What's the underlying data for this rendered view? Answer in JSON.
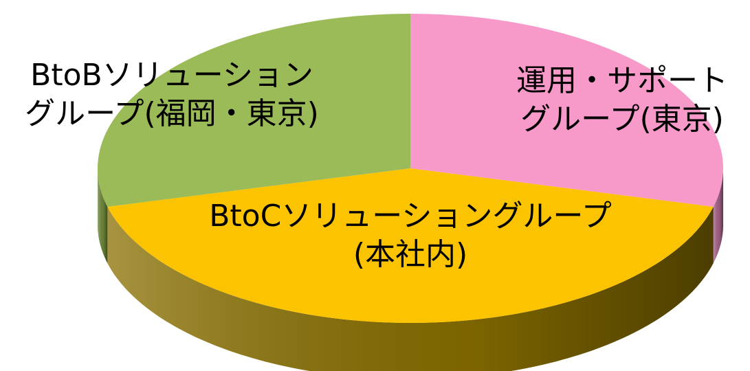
{
  "chart_data": {
    "type": "pie3d",
    "categories": [
      "運用・サポート\nグループ(東京)",
      "BtoCソリューショングループ\n(本社内)",
      "BtoBソリューション\nグループ(福岡・東京)"
    ],
    "values": [
      29,
      42,
      29
    ],
    "colors": [
      "#f799c9",
      "#fcc400",
      "#9bbb59"
    ],
    "side_colors": [
      "#a8648a",
      "#8a7000",
      "#6f8a3a"
    ]
  }
}
